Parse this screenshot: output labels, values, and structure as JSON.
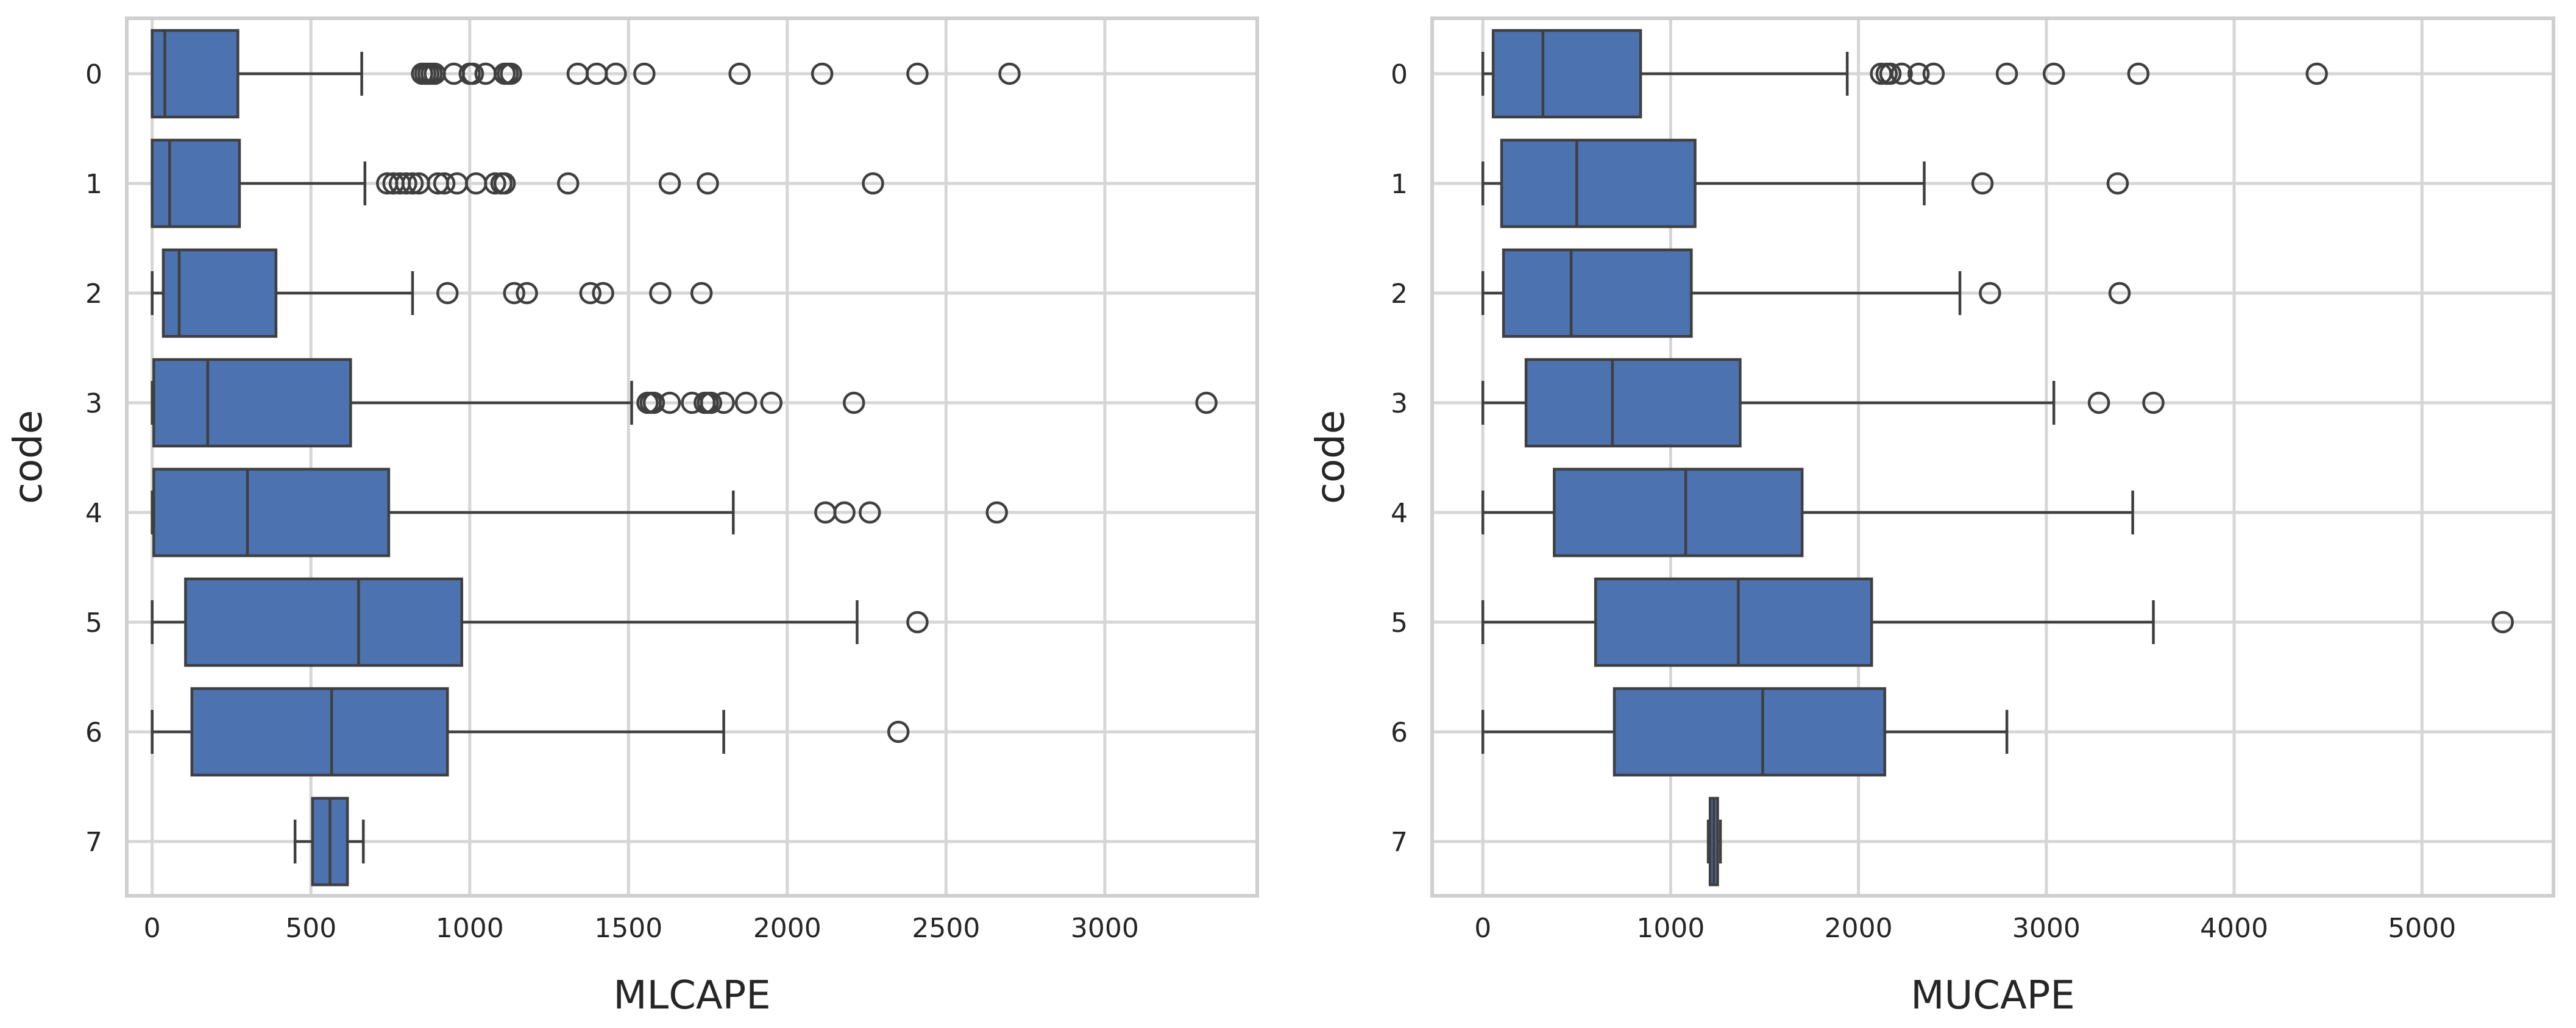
{
  "chart_data": [
    {
      "type": "box",
      "orientation": "horizontal",
      "xlabel": "MLCAPE",
      "ylabel": "code",
      "xlim": [
        -80,
        3480
      ],
      "xticks": [
        0,
        500,
        1000,
        1500,
        2000,
        2500,
        3000
      ],
      "grid": true,
      "color": "#4c72b0",
      "categories": [
        "0",
        "1",
        "2",
        "3",
        "4",
        "5",
        "6",
        "7"
      ],
      "boxes": [
        {
          "code": "0",
          "whislo": 0,
          "q1": 0,
          "med": 40,
          "q3": 270,
          "whishi": 660,
          "fliers": [
            850,
            860,
            870,
            880,
            890,
            950,
            1000,
            1010,
            1050,
            1110,
            1120,
            1130,
            1340,
            1400,
            1460,
            1550,
            1850,
            2110,
            2410,
            2700
          ]
        },
        {
          "code": "1",
          "whislo": 0,
          "q1": 0,
          "med": 55,
          "q3": 275,
          "whishi": 670,
          "fliers": [
            740,
            760,
            780,
            800,
            820,
            840,
            900,
            920,
            960,
            1020,
            1080,
            1100,
            1110,
            1310,
            1630,
            1750,
            2270
          ]
        },
        {
          "code": "2",
          "whislo": 0,
          "q1": 35,
          "med": 85,
          "q3": 390,
          "whishi": 820,
          "fliers": [
            930,
            1140,
            1180,
            1380,
            1420,
            1600,
            1730
          ]
        },
        {
          "code": "3",
          "whislo": 0,
          "q1": 5,
          "med": 175,
          "q3": 625,
          "whishi": 1510,
          "fliers": [
            1560,
            1570,
            1580,
            1630,
            1700,
            1740,
            1750,
            1760,
            1800,
            1870,
            1950,
            2210,
            3320
          ]
        },
        {
          "code": "4",
          "whislo": 0,
          "q1": 5,
          "med": 300,
          "q3": 745,
          "whishi": 1830,
          "fliers": [
            2120,
            2180,
            2260,
            2660
          ]
        },
        {
          "code": "5",
          "whislo": 0,
          "q1": 105,
          "med": 650,
          "q3": 975,
          "whishi": 2220,
          "fliers": [
            2410
          ]
        },
        {
          "code": "6",
          "whislo": 0,
          "q1": 125,
          "med": 565,
          "q3": 930,
          "whishi": 1800,
          "fliers": [
            2350
          ]
        },
        {
          "code": "7",
          "whislo": 450,
          "q1": 505,
          "med": 560,
          "q3": 615,
          "whishi": 665,
          "fliers": []
        }
      ]
    },
    {
      "type": "box",
      "orientation": "horizontal",
      "xlabel": "MUCAPE",
      "ylabel": "code",
      "xlim": [
        -270,
        5700
      ],
      "xticks": [
        0,
        1000,
        2000,
        3000,
        4000,
        5000
      ],
      "grid": true,
      "color": "#4c72b0",
      "categories": [
        "0",
        "1",
        "2",
        "3",
        "4",
        "5",
        "6",
        "7"
      ],
      "boxes": [
        {
          "code": "0",
          "whislo": 0,
          "q1": 55,
          "med": 320,
          "q3": 840,
          "whishi": 1940,
          "fliers": [
            2120,
            2150,
            2170,
            2230,
            2320,
            2400,
            2790,
            3040,
            3490,
            4440
          ]
        },
        {
          "code": "1",
          "whislo": 0,
          "q1": 100,
          "med": 500,
          "q3": 1130,
          "whishi": 2350,
          "fliers": [
            2660,
            3380
          ]
        },
        {
          "code": "2",
          "whislo": 0,
          "q1": 110,
          "med": 470,
          "q3": 1110,
          "whishi": 2540,
          "fliers": [
            2700,
            3390
          ]
        },
        {
          "code": "3",
          "whislo": 0,
          "q1": 230,
          "med": 690,
          "q3": 1370,
          "whishi": 3040,
          "fliers": [
            3280,
            3570
          ]
        },
        {
          "code": "4",
          "whislo": 0,
          "q1": 380,
          "med": 1080,
          "q3": 1700,
          "whishi": 3460,
          "fliers": []
        },
        {
          "code": "5",
          "whislo": 0,
          "q1": 600,
          "med": 1360,
          "q3": 2070,
          "whishi": 3570,
          "fliers": [
            5430
          ]
        },
        {
          "code": "6",
          "whislo": 0,
          "q1": 700,
          "med": 1490,
          "q3": 2140,
          "whishi": 2790,
          "fliers": []
        },
        {
          "code": "7",
          "whislo": 1200,
          "q1": 1210,
          "med": 1230,
          "q3": 1250,
          "whishi": 1265,
          "fliers": []
        }
      ]
    }
  ]
}
